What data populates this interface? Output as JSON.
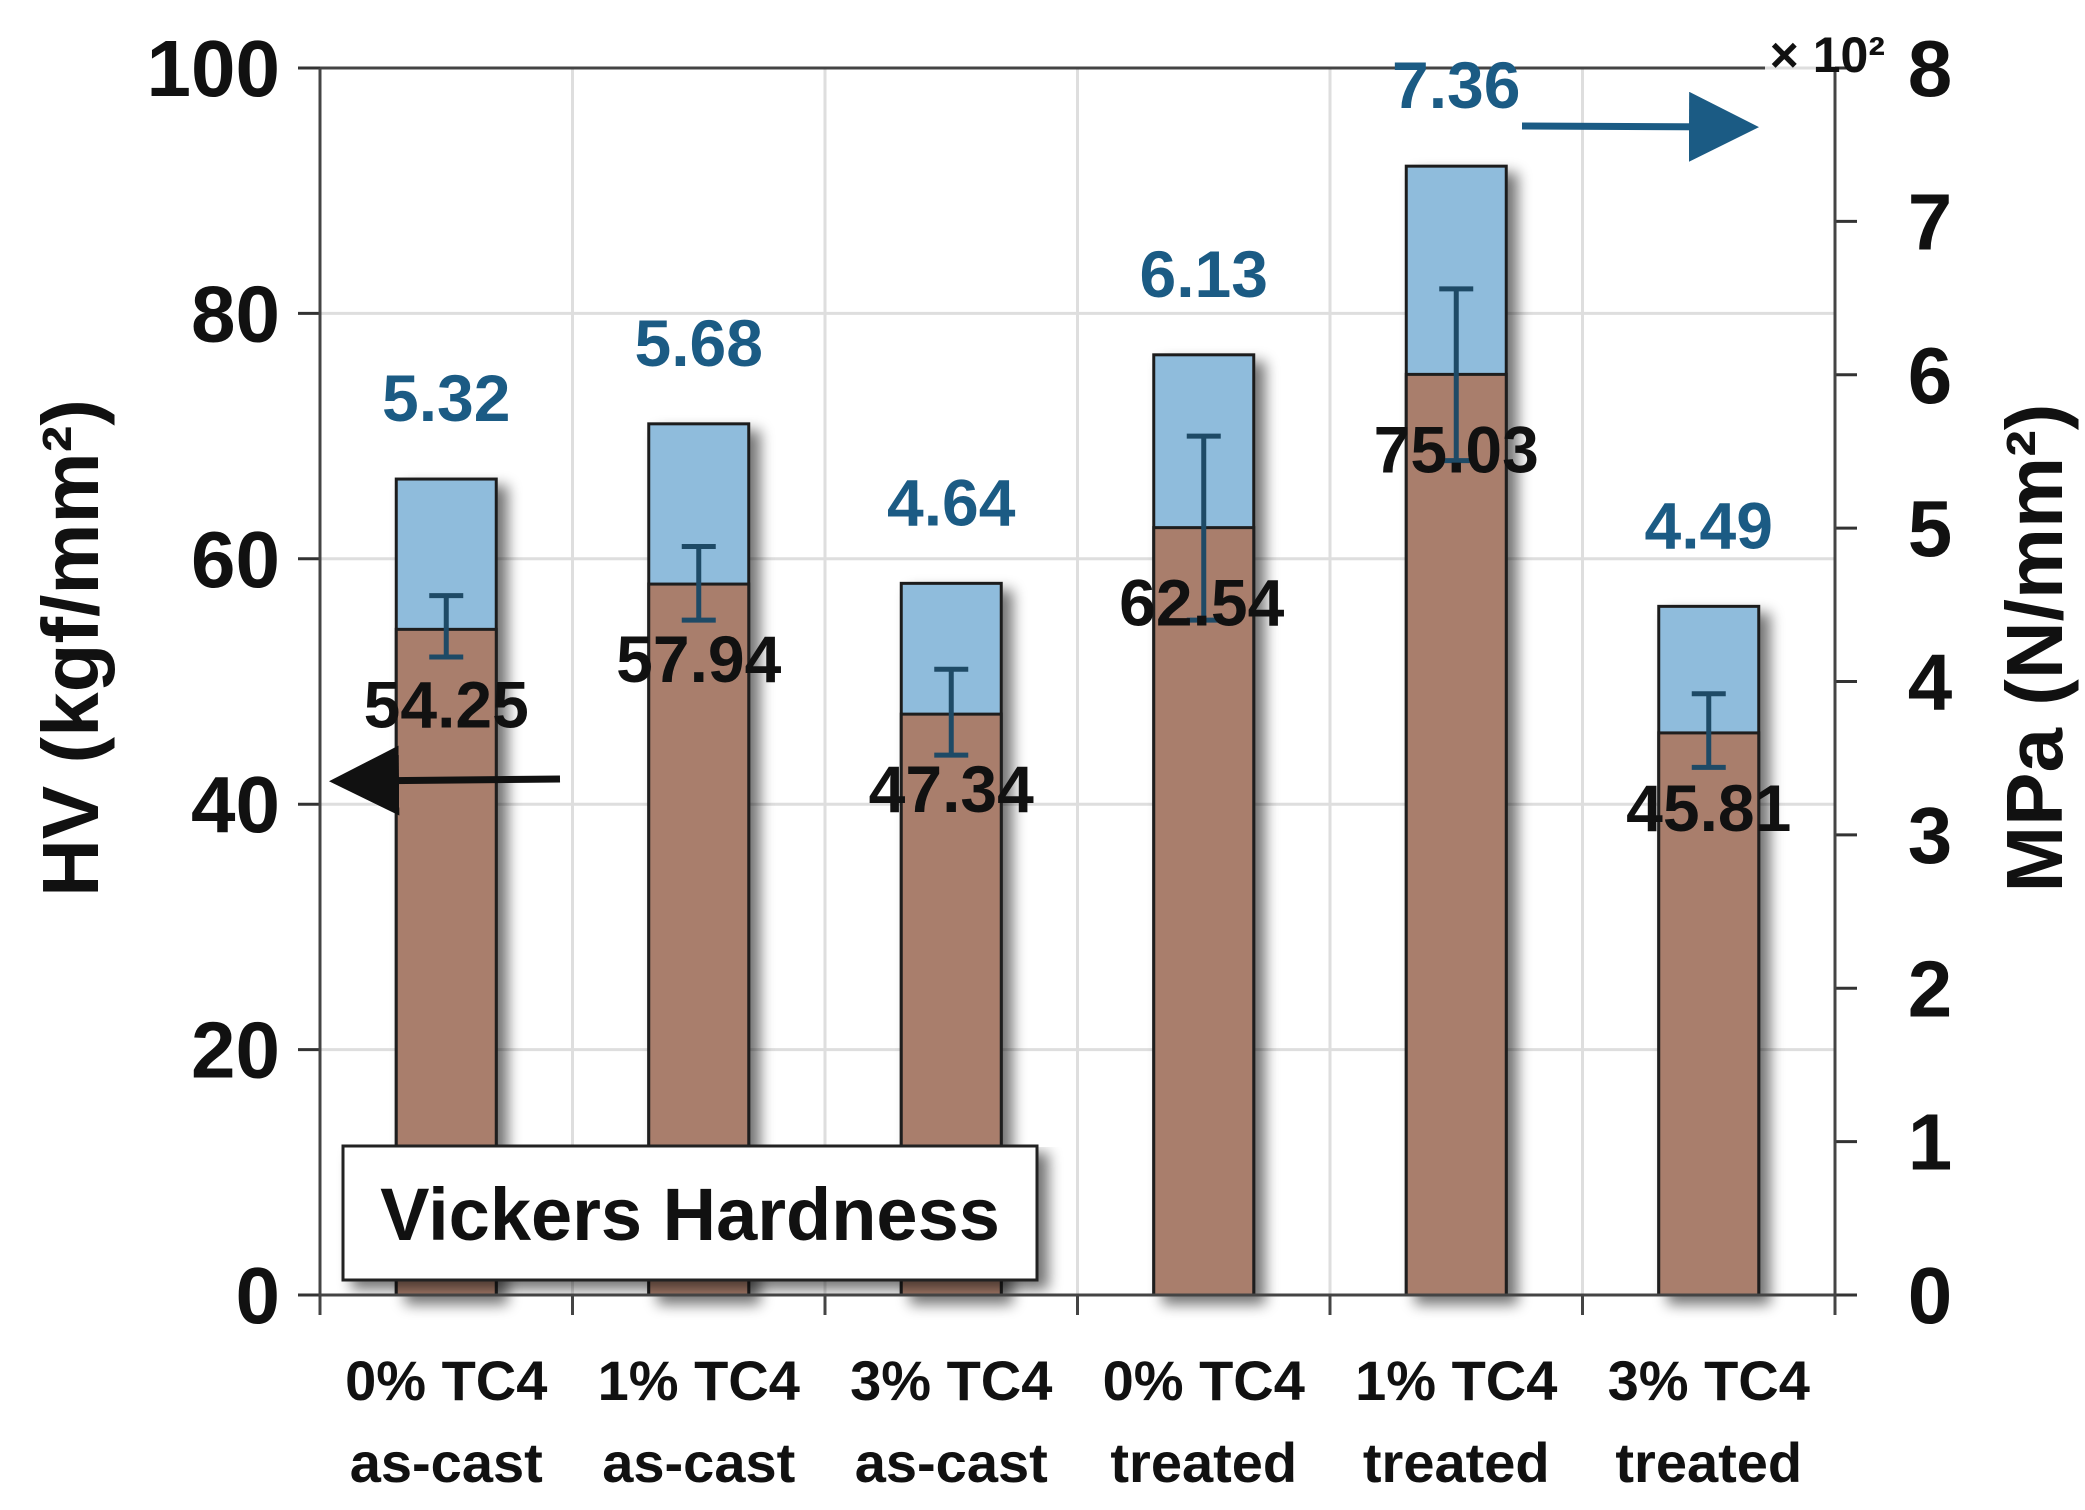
{
  "chart_data": {
    "type": "bar",
    "title": "Vickers Hardness",
    "categories": [
      [
        "0% TC4",
        "as-cast"
      ],
      [
        "1% TC4",
        "as-cast"
      ],
      [
        "3% TC4",
        "as-cast"
      ],
      [
        "0% TC4",
        "treated"
      ],
      [
        "1% TC4",
        "treated"
      ],
      [
        "3% TC4",
        "treated"
      ]
    ],
    "series": [
      {
        "name": "HV",
        "axis": "left",
        "values": [
          54.25,
          57.94,
          47.34,
          62.54,
          75.03,
          45.81
        ],
        "labels": [
          "54.25",
          "57.94",
          "47.34",
          "62.54",
          "75.03",
          "45.81"
        ],
        "error_low": [
          52,
          55,
          44,
          55,
          68,
          43
        ],
        "error_high": [
          57,
          61,
          51,
          70,
          82,
          49
        ],
        "color": "#a97e6c"
      },
      {
        "name": "MPa",
        "axis": "right",
        "values": [
          5.32,
          5.68,
          4.64,
          6.13,
          7.36,
          4.49
        ],
        "labels": [
          "5.32",
          "5.68",
          "4.64",
          "6.13",
          "7.36",
          "4.49"
        ],
        "color": "#8fbcdc"
      }
    ],
    "ylabel": "HV (kgf/mm²)",
    "ylim": [
      0,
      100
    ],
    "yticks": [
      "0",
      "20",
      "40",
      "60",
      "80",
      "100"
    ],
    "y2label": "MPa (N/mm²)",
    "y2lim": [
      0,
      8
    ],
    "y2ticks": [
      "0",
      "1",
      "2",
      "3",
      "4",
      "5",
      "6",
      "7",
      "8"
    ],
    "y2_multiplier": "× 10²",
    "legend": "Vickers Hardness",
    "grid": true,
    "colors": {
      "hv_bar": "#a97e6c",
      "mpa_bar": "#8fbcdc",
      "mpa_text": "#1b5b84",
      "error_bar": "#1e4a66",
      "arrow_right": "#1b5b84",
      "arrow_left": "#111111"
    }
  }
}
